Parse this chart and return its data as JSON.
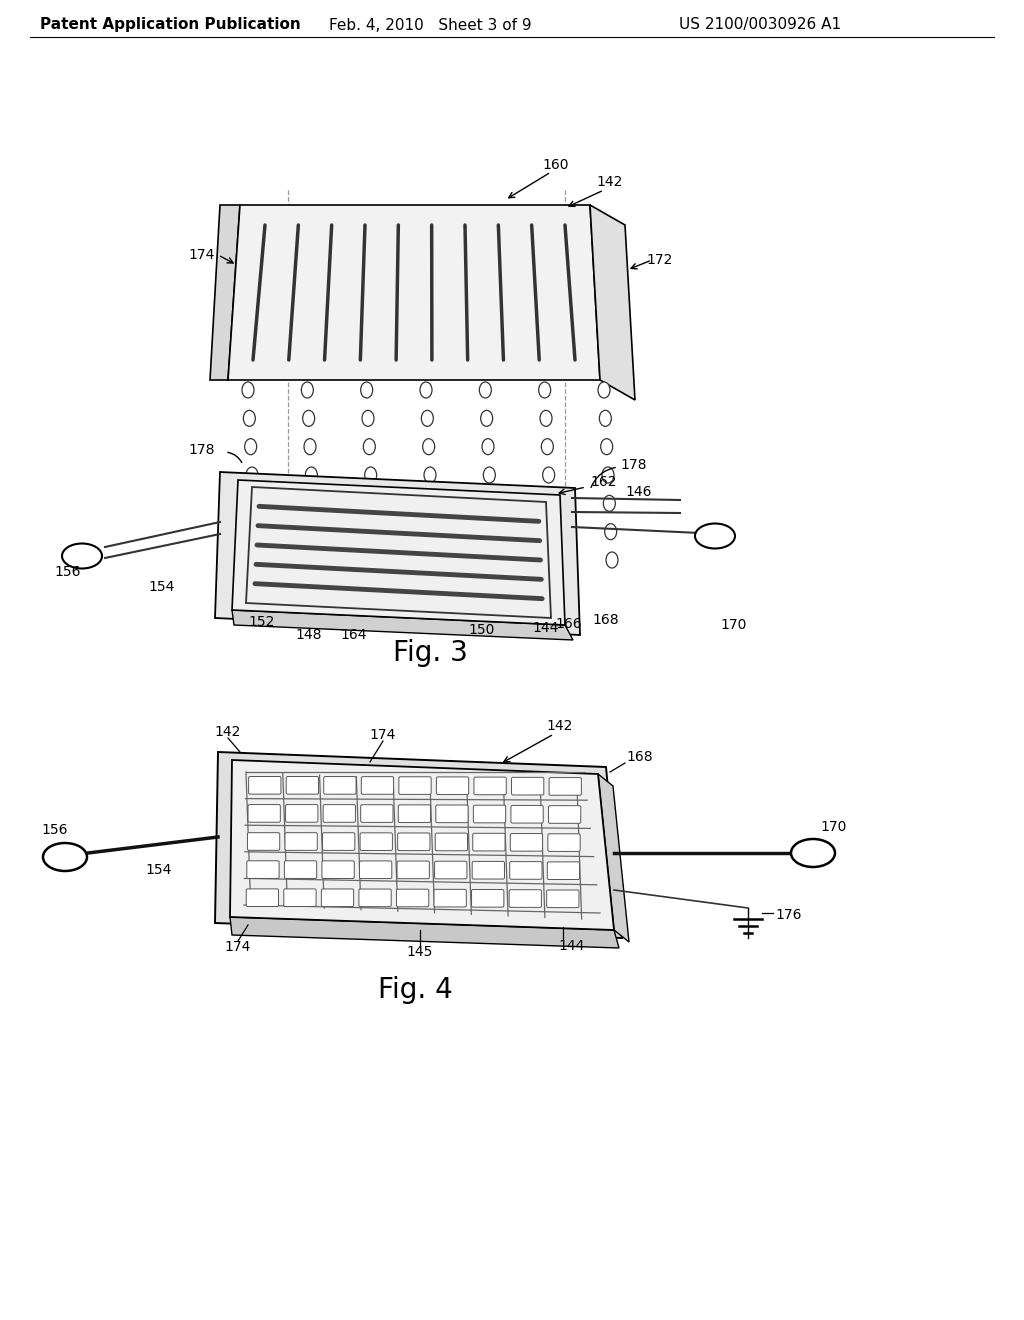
{
  "bg_color": "#ffffff",
  "header_left": "Patent Application Publication",
  "header_mid": "Feb. 4, 2010   Sheet 3 of 9",
  "header_right": "US 2100/0030926 A1",
  "fig3_caption": "Fig. 3",
  "fig4_caption": "Fig. 4",
  "header_fontsize": 11,
  "caption_fontsize": 20,
  "label_fontsize": 10
}
